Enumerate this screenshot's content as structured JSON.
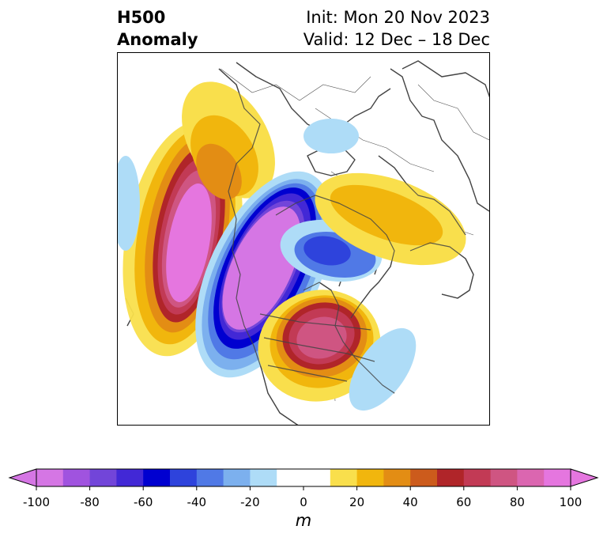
{
  "title": {
    "left_line1": "H500",
    "left_line2": "Anomaly",
    "right_line1": "Init: Mon 20 Nov 2023",
    "right_line2": "Valid: 12 Dec – 18 Dec"
  },
  "colorbar": {
    "unit": "m",
    "ticks": [
      "-100",
      "-80",
      "-60",
      "-40",
      "-20",
      "0",
      "20",
      "40",
      "60",
      "80",
      "100"
    ],
    "min": -100,
    "max": 100,
    "step": 10,
    "colors": [
      "#d576e4",
      "#a053df",
      "#7245d9",
      "#4228d6",
      "#0000d0",
      "#2e43dc",
      "#5079e6",
      "#7cb0ee",
      "#aedcf7",
      "#ffffff",
      "#ffffff",
      "#f9df4c",
      "#f1b60d",
      "#e38d14",
      "#cc5b1c",
      "#b02529",
      "#c23a55",
      "#cf5582",
      "#db66b0",
      "#e576df"
    ],
    "extend": "both"
  },
  "map": {
    "features": [
      "positive-anomaly-north-pacific",
      "negative-anomaly-western-canada",
      "positive-anomaly-eastern-us",
      "positive-anomaly-eurasia",
      "negative-anomaly-greenland",
      "negative-anomaly-atlantic",
      "negative-anomaly-arctic",
      "negative-anomaly-siberia-edge"
    ]
  }
}
